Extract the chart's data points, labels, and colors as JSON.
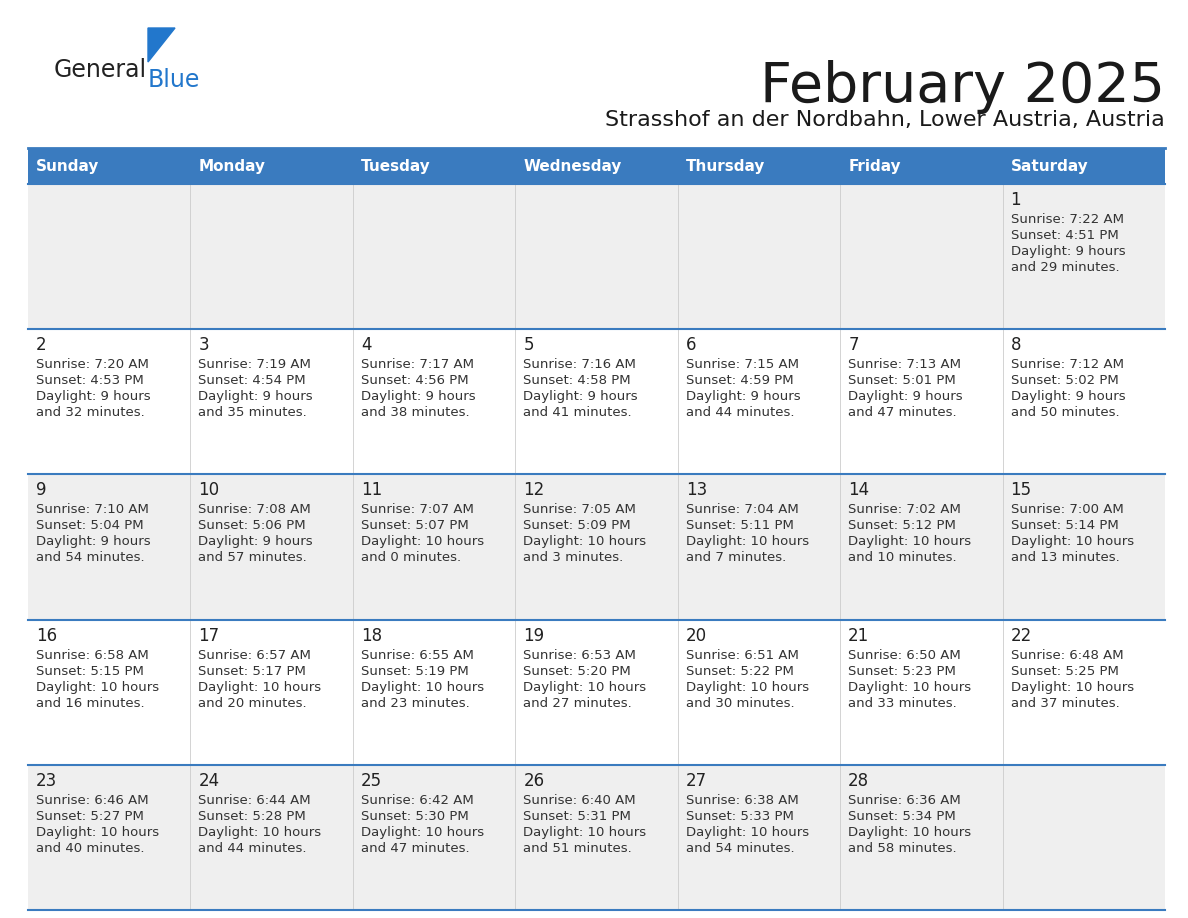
{
  "title": "February 2025",
  "subtitle": "Strasshof an der Nordbahn, Lower Austria, Austria",
  "days_of_week": [
    "Sunday",
    "Monday",
    "Tuesday",
    "Wednesday",
    "Thursday",
    "Friday",
    "Saturday"
  ],
  "header_bg": "#3a7bbf",
  "header_text": "#ffffff",
  "cell_bg_odd": "#efefef",
  "cell_bg_even": "#ffffff",
  "separator_color": "#3a7bbf",
  "day_number_color": "#222222",
  "cell_text_color": "#333333",
  "logo_general_color": "#222222",
  "logo_blue_color": "#2277cc",
  "logo_triangle_color": "#2277cc",
  "calendar_data": [
    [
      null,
      null,
      null,
      null,
      null,
      null,
      {
        "day": 1,
        "sunrise": "7:22 AM",
        "sunset": "4:51 PM",
        "daylight_h": "9 hours",
        "daylight_m": "and 29 minutes."
      }
    ],
    [
      {
        "day": 2,
        "sunrise": "7:20 AM",
        "sunset": "4:53 PM",
        "daylight_h": "9 hours",
        "daylight_m": "and 32 minutes."
      },
      {
        "day": 3,
        "sunrise": "7:19 AM",
        "sunset": "4:54 PM",
        "daylight_h": "9 hours",
        "daylight_m": "and 35 minutes."
      },
      {
        "day": 4,
        "sunrise": "7:17 AM",
        "sunset": "4:56 PM",
        "daylight_h": "9 hours",
        "daylight_m": "and 38 minutes."
      },
      {
        "day": 5,
        "sunrise": "7:16 AM",
        "sunset": "4:58 PM",
        "daylight_h": "9 hours",
        "daylight_m": "and 41 minutes."
      },
      {
        "day": 6,
        "sunrise": "7:15 AM",
        "sunset": "4:59 PM",
        "daylight_h": "9 hours",
        "daylight_m": "and 44 minutes."
      },
      {
        "day": 7,
        "sunrise": "7:13 AM",
        "sunset": "5:01 PM",
        "daylight_h": "9 hours",
        "daylight_m": "and 47 minutes."
      },
      {
        "day": 8,
        "sunrise": "7:12 AM",
        "sunset": "5:02 PM",
        "daylight_h": "9 hours",
        "daylight_m": "and 50 minutes."
      }
    ],
    [
      {
        "day": 9,
        "sunrise": "7:10 AM",
        "sunset": "5:04 PM",
        "daylight_h": "9 hours",
        "daylight_m": "and 54 minutes."
      },
      {
        "day": 10,
        "sunrise": "7:08 AM",
        "sunset": "5:06 PM",
        "daylight_h": "9 hours",
        "daylight_m": "and 57 minutes."
      },
      {
        "day": 11,
        "sunrise": "7:07 AM",
        "sunset": "5:07 PM",
        "daylight_h": "10 hours",
        "daylight_m": "and 0 minutes."
      },
      {
        "day": 12,
        "sunrise": "7:05 AM",
        "sunset": "5:09 PM",
        "daylight_h": "10 hours",
        "daylight_m": "and 3 minutes."
      },
      {
        "day": 13,
        "sunrise": "7:04 AM",
        "sunset": "5:11 PM",
        "daylight_h": "10 hours",
        "daylight_m": "and 7 minutes."
      },
      {
        "day": 14,
        "sunrise": "7:02 AM",
        "sunset": "5:12 PM",
        "daylight_h": "10 hours",
        "daylight_m": "and 10 minutes."
      },
      {
        "day": 15,
        "sunrise": "7:00 AM",
        "sunset": "5:14 PM",
        "daylight_h": "10 hours",
        "daylight_m": "and 13 minutes."
      }
    ],
    [
      {
        "day": 16,
        "sunrise": "6:58 AM",
        "sunset": "5:15 PM",
        "daylight_h": "10 hours",
        "daylight_m": "and 16 minutes."
      },
      {
        "day": 17,
        "sunrise": "6:57 AM",
        "sunset": "5:17 PM",
        "daylight_h": "10 hours",
        "daylight_m": "and 20 minutes."
      },
      {
        "day": 18,
        "sunrise": "6:55 AM",
        "sunset": "5:19 PM",
        "daylight_h": "10 hours",
        "daylight_m": "and 23 minutes."
      },
      {
        "day": 19,
        "sunrise": "6:53 AM",
        "sunset": "5:20 PM",
        "daylight_h": "10 hours",
        "daylight_m": "and 27 minutes."
      },
      {
        "day": 20,
        "sunrise": "6:51 AM",
        "sunset": "5:22 PM",
        "daylight_h": "10 hours",
        "daylight_m": "and 30 minutes."
      },
      {
        "day": 21,
        "sunrise": "6:50 AM",
        "sunset": "5:23 PM",
        "daylight_h": "10 hours",
        "daylight_m": "and 33 minutes."
      },
      {
        "day": 22,
        "sunrise": "6:48 AM",
        "sunset": "5:25 PM",
        "daylight_h": "10 hours",
        "daylight_m": "and 37 minutes."
      }
    ],
    [
      {
        "day": 23,
        "sunrise": "6:46 AM",
        "sunset": "5:27 PM",
        "daylight_h": "10 hours",
        "daylight_m": "and 40 minutes."
      },
      {
        "day": 24,
        "sunrise": "6:44 AM",
        "sunset": "5:28 PM",
        "daylight_h": "10 hours",
        "daylight_m": "and 44 minutes."
      },
      {
        "day": 25,
        "sunrise": "6:42 AM",
        "sunset": "5:30 PM",
        "daylight_h": "10 hours",
        "daylight_m": "and 47 minutes."
      },
      {
        "day": 26,
        "sunrise": "6:40 AM",
        "sunset": "5:31 PM",
        "daylight_h": "10 hours",
        "daylight_m": "and 51 minutes."
      },
      {
        "day": 27,
        "sunrise": "6:38 AM",
        "sunset": "5:33 PM",
        "daylight_h": "10 hours",
        "daylight_m": "and 54 minutes."
      },
      {
        "day": 28,
        "sunrise": "6:36 AM",
        "sunset": "5:34 PM",
        "daylight_h": "10 hours",
        "daylight_m": "and 58 minutes."
      },
      null
    ]
  ]
}
